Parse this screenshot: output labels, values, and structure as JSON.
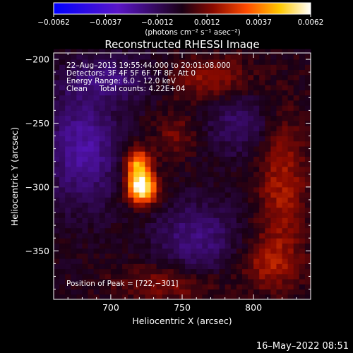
{
  "chart_data": {
    "type": "heatmap",
    "title": "Reconstructed RHESSI Image",
    "xlabel": "Heliocentric X (arcsec)",
    "ylabel": "Heliocentric Y (arcsec)",
    "xlim": [
      660,
      840
    ],
    "ylim": [
      -388,
      -195
    ],
    "x_ticks": [
      700,
      750,
      800
    ],
    "x_tick_labels": [
      "700",
      "750",
      "800"
    ],
    "y_ticks": [
      -200,
      -250,
      -300,
      -350
    ],
    "y_tick_labels": [
      "−200",
      "−250",
      "−300",
      "−350"
    ],
    "colorbar": {
      "range": [
        -0.0062,
        0.0062
      ],
      "ticks": [
        -0.0062,
        -0.0037,
        -0.0012,
        0.0012,
        0.0037,
        0.0062
      ],
      "tick_labels": [
        "−0.0062",
        "−0.0037",
        "−0.0012",
        "0.0012",
        "0.0037",
        "0.0062"
      ],
      "unit_label": "(photons cm⁻² s⁻¹ asec⁻²)"
    },
    "annotations": {
      "time": "22–Aug–2013 19:55:44.000 to 20:01:08.000",
      "detectors": "Detectors: 3F 4F 5F 6F 7F 8F, Att 0",
      "energy": "Energy Range: 6.0 – 12.0 keV",
      "clean": "Clean     Total counts: 4.22E+04",
      "peak": "Position of Peak = [722,−301]"
    },
    "peak": {
      "x": 722,
      "y": -301
    },
    "sources": [
      {
        "x": 722,
        "y": -301,
        "sx": 7,
        "sy": 8,
        "amp": 0.0062
      },
      {
        "x": 719,
        "y": -283,
        "sx": 6,
        "sy": 9,
        "amp": 0.0046
      }
    ],
    "background": [
      {
        "x": 680,
        "y": -270,
        "sx": 18,
        "sy": 30,
        "amp": -0.0024
      },
      {
        "x": 700,
        "y": -215,
        "sx": 22,
        "sy": 12,
        "amp": -0.0016
      },
      {
        "x": 760,
        "y": -340,
        "sx": 20,
        "sy": 20,
        "amp": -0.0018
      },
      {
        "x": 790,
        "y": -250,
        "sx": 16,
        "sy": 18,
        "amp": -0.0014
      },
      {
        "x": 820,
        "y": -300,
        "sx": 12,
        "sy": 40,
        "amp": 0.0018
      },
      {
        "x": 770,
        "y": -215,
        "sx": 20,
        "sy": 12,
        "amp": 0.0016
      },
      {
        "x": 740,
        "y": -375,
        "sx": 25,
        "sy": 10,
        "amp": 0.0014
      },
      {
        "x": 810,
        "y": -360,
        "sx": 14,
        "sy": 14,
        "amp": 0.0015
      },
      {
        "x": 745,
        "y": -260,
        "sx": 10,
        "sy": 12,
        "amp": 0.0012
      }
    ]
  },
  "footer": "16–May–2022 08:51"
}
